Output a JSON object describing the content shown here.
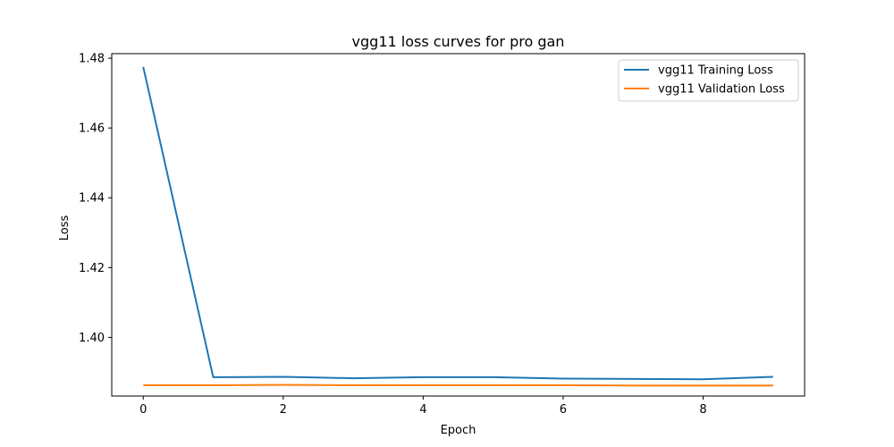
{
  "chart_data": {
    "type": "line",
    "title": "vgg11 loss curves for pro gan",
    "xlabel": "Epoch",
    "ylabel": "Loss",
    "xlim": [
      -0.45,
      9.45
    ],
    "ylim": [
      1.3832,
      1.4813
    ],
    "xticks": [
      0,
      2,
      4,
      6,
      8
    ],
    "yticks": [
      1.4,
      1.42,
      1.44,
      1.46,
      1.48
    ],
    "ytick_labels": [
      "1.40",
      "1.42",
      "1.44",
      "1.46",
      "1.48"
    ],
    "grid": false,
    "legend_position": "top-right",
    "x": [
      0,
      1,
      2,
      3,
      4,
      5,
      6,
      7,
      8,
      9
    ],
    "series": [
      {
        "name": "vgg11 Training Loss",
        "color": "#1f77b4",
        "values": [
          1.4775,
          1.3886,
          1.3887,
          1.3883,
          1.3886,
          1.3886,
          1.3882,
          1.3881,
          1.388,
          1.3887
        ]
      },
      {
        "name": "vgg11 Validation Loss",
        "color": "#ff7f0e",
        "values": [
          1.3863,
          1.3863,
          1.3864,
          1.3863,
          1.3863,
          1.3863,
          1.3863,
          1.3862,
          1.3862,
          1.3862
        ]
      }
    ]
  }
}
